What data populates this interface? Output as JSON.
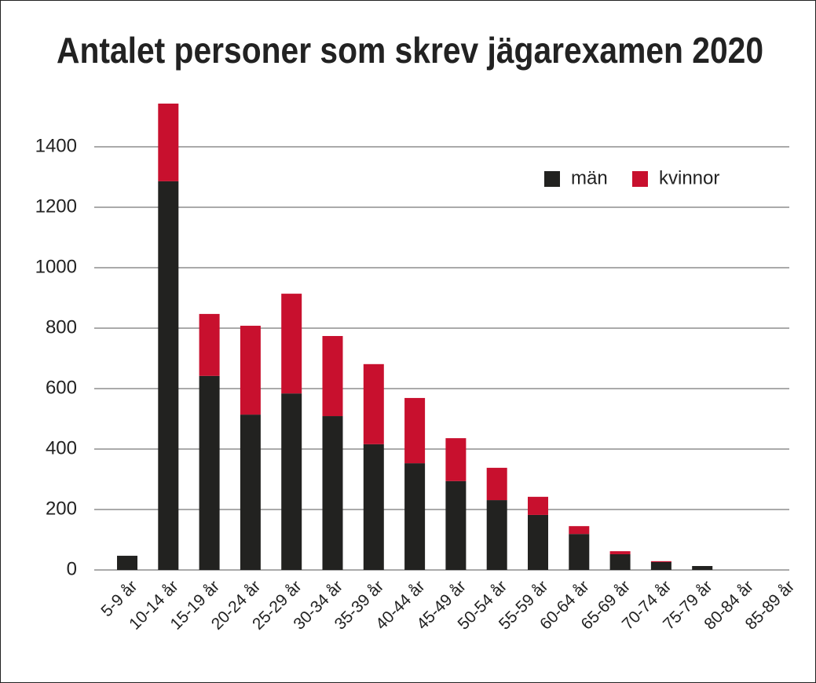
{
  "chart_data": {
    "type": "stacked_bar",
    "title": "Antalet personer som skrev jägarexamen 2020",
    "categories": [
      "5-9 år",
      "10-14 år",
      "15-19 år",
      "20-24 år",
      "25-29 år",
      "30-34 år",
      "35-39 år",
      "40-44 år",
      "45-49 år",
      "50-54 år",
      "55-59 år",
      "60-64 år",
      "65-69 år",
      "70-74 år",
      "75-79 år",
      "80-84 år",
      "85-89 år"
    ],
    "series": [
      {
        "name": "män",
        "color": "#222220",
        "values": [
          47,
          1286,
          642,
          514,
          584,
          509,
          416,
          353,
          294,
          231,
          182,
          119,
          52,
          26,
          13,
          0,
          0
        ]
      },
      {
        "name": "kvinnor",
        "color": "#c8102e",
        "values": [
          0,
          257,
          205,
          294,
          330,
          265,
          265,
          216,
          142,
          107,
          60,
          26,
          10,
          3,
          0,
          0,
          0
        ]
      }
    ],
    "ylim": [
      0,
      1560
    ],
    "yticks": [
      0,
      200,
      400,
      600,
      800,
      1000,
      1200,
      1400
    ],
    "grid": true,
    "legend": "upper right"
  }
}
